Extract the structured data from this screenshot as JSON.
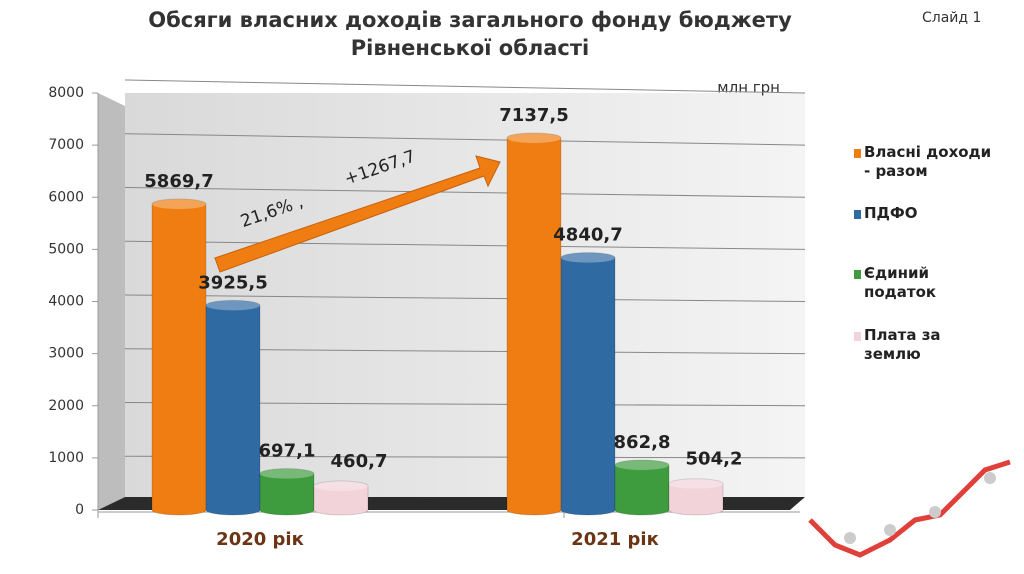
{
  "chart_data": {
    "type": "bar",
    "title": "Обсяги власних доходів загального фонду бюджету Рівненської області",
    "slide_label": "Слайд 1",
    "unit_label": "млн грн",
    "categories": [
      "2020 рік",
      "2021 рік"
    ],
    "series": [
      {
        "name": "Власні доходи - разом",
        "color": "#f07d12",
        "values": [
          5869.7,
          7137.5
        ],
        "value_labels": [
          "5869,7",
          "7137,5"
        ]
      },
      {
        "name": "ПДФО",
        "color": "#2f6aa3",
        "values": [
          3925.5,
          4840.7
        ],
        "value_labels": [
          "3925,5",
          "4840,7"
        ]
      },
      {
        "name": "Єдиний податок",
        "color": "#3e9b3e",
        "values": [
          697.1,
          862.8
        ],
        "value_labels": [
          "697,1",
          "862,8"
        ]
      },
      {
        "name": "Плата за землю",
        "color": "#f3d3da",
        "values": [
          460.7,
          504.2
        ],
        "value_labels": [
          "460,7",
          "504,2"
        ]
      }
    ],
    "annotations": [
      "21,6% ,",
      "+1267,7"
    ],
    "ylim": [
      0,
      8000
    ],
    "yticks": [
      0,
      1000,
      2000,
      3000,
      4000,
      5000,
      6000,
      7000,
      8000
    ],
    "grid": true
  }
}
